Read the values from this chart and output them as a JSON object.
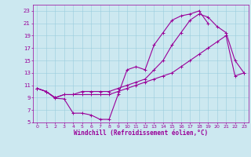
{
  "background_color": "#cce8f0",
  "grid_color": "#99ccdd",
  "line_color": "#990099",
  "xlabel": "Windchill (Refroidissement éolien,°C)",
  "xlim": [
    -0.5,
    23.5
  ],
  "ylim": [
    5,
    24
  ],
  "yticks": [
    5,
    7,
    9,
    11,
    13,
    15,
    17,
    19,
    21,
    23
  ],
  "xticks": [
    0,
    1,
    2,
    3,
    4,
    5,
    6,
    7,
    8,
    9,
    10,
    11,
    12,
    13,
    14,
    15,
    16,
    17,
    18,
    19,
    20,
    21,
    22,
    23
  ],
  "series1_x": [
    0,
    1,
    2,
    3,
    4,
    5,
    6,
    7,
    8,
    9,
    10,
    11,
    12,
    13,
    14,
    15,
    16,
    17,
    18,
    19,
    20,
    21,
    22,
    23
  ],
  "series1_y": [
    10.5,
    10.0,
    8.9,
    8.8,
    6.5,
    6.5,
    6.2,
    5.5,
    5.5,
    9.5,
    13.5,
    14.0,
    13.5,
    17.5,
    19.5,
    21.5,
    22.2,
    22.5,
    23.0,
    21.0,
    null,
    null,
    null,
    null
  ],
  "series2_x": [
    0,
    1,
    2,
    3,
    4,
    5,
    6,
    7,
    8,
    9,
    10,
    11,
    12,
    13,
    14,
    15,
    16,
    17,
    18,
    19,
    20,
    21,
    22,
    23
  ],
  "series2_y": [
    10.5,
    10.0,
    9.0,
    9.5,
    9.5,
    10.0,
    10.0,
    10.0,
    10.0,
    10.5,
    11.0,
    11.5,
    12.0,
    13.5,
    15.0,
    17.5,
    19.5,
    21.5,
    22.5,
    22.0,
    20.5,
    19.5,
    15.0,
    13.0
  ],
  "series3_x": [
    0,
    1,
    2,
    3,
    4,
    5,
    6,
    7,
    8,
    9,
    10,
    11,
    12,
    13,
    14,
    15,
    16,
    17,
    18,
    19,
    20,
    21,
    22,
    23
  ],
  "series3_y": [
    10.5,
    10.0,
    9.0,
    9.5,
    9.5,
    9.5,
    9.5,
    9.5,
    9.5,
    10.0,
    10.5,
    11.0,
    11.5,
    12.0,
    12.5,
    13.0,
    14.0,
    15.0,
    16.0,
    17.0,
    18.0,
    19.0,
    12.5,
    13.0
  ]
}
